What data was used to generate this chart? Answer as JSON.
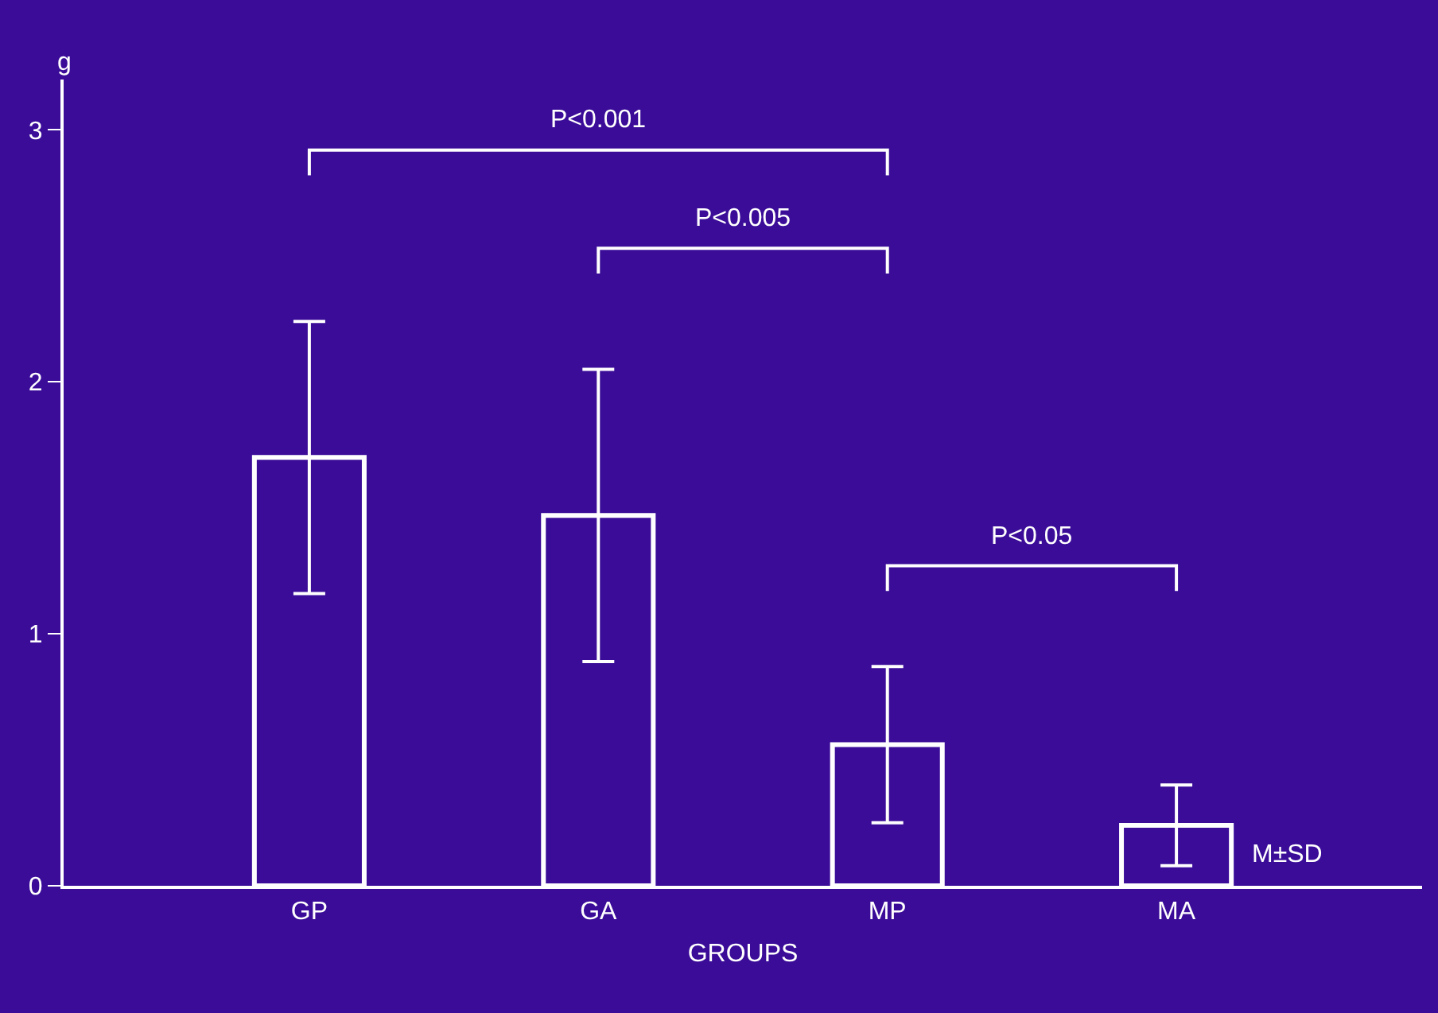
{
  "chart_data": {
    "type": "bar",
    "categories": [
      "GP",
      "GA",
      "MP",
      "MA"
    ],
    "values": [
      1.7,
      1.47,
      0.56,
      0.24
    ],
    "errors": [
      0.54,
      0.58,
      0.31,
      0.16
    ],
    "color": "#ffffff",
    "xlabel": "GROUPS",
    "ylabel": "g",
    "ylim": [
      0,
      3.2
    ],
    "yticks": [
      0,
      1,
      2,
      3
    ],
    "grid": false,
    "legend": false,
    "annotations": [
      "P<0.001",
      "P<0.005",
      "P<0.05",
      "M±SD"
    ]
  }
}
